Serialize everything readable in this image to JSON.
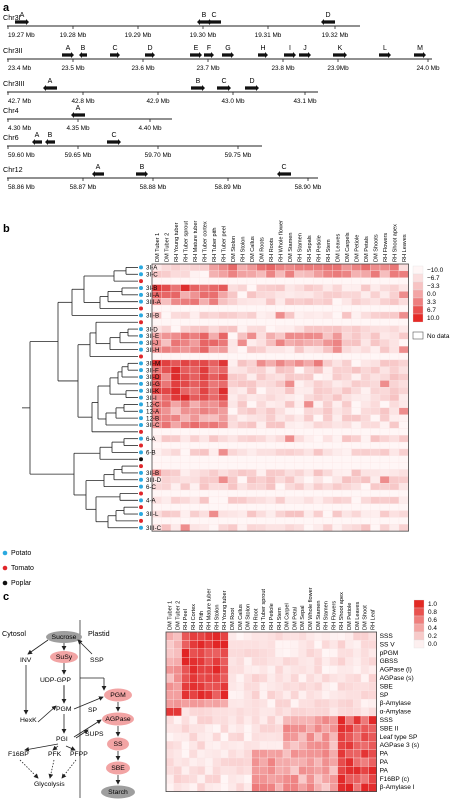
{
  "panel_a": {
    "letter": "a",
    "rows": [
      {
        "chr": "Chr3I",
        "ticks": [
          "19.27 Mb",
          "19.28 Mb",
          "19.29 Mb",
          "19.30 Mb",
          "19.31 Mb",
          "19.32 Mb"
        ],
        "genes": [
          {
            "label": "A",
            "dir": "right"
          },
          {
            "label": "B",
            "dir": "left"
          },
          {
            "label": "C",
            "dir": "left"
          },
          {
            "label": "D",
            "dir": "left"
          }
        ]
      },
      {
        "chr": "Chr3II",
        "ticks": [
          "23.4 Mb",
          "23.5 Mb",
          "23.6 Mb",
          "23.7 Mb",
          "23.8 Mb",
          "23.9Mb",
          "24.0 Mb"
        ],
        "genes": [
          {
            "label": "A",
            "dir": "right"
          },
          {
            "label": "B",
            "dir": "left"
          },
          {
            "label": "C",
            "dir": "right"
          },
          {
            "label": "D",
            "dir": "right"
          },
          {
            "label": "E",
            "dir": "right"
          },
          {
            "label": "F",
            "dir": "right"
          },
          {
            "label": "G",
            "dir": "right"
          },
          {
            "label": "H",
            "dir": "right"
          },
          {
            "label": "I",
            "dir": "right"
          },
          {
            "label": "J",
            "dir": "right"
          },
          {
            "label": "K",
            "dir": "right"
          },
          {
            "label": "L",
            "dir": "right"
          },
          {
            "label": "M",
            "dir": "right"
          }
        ]
      },
      {
        "chr": "Chr3III",
        "ticks": [
          "42.7 Mb",
          "42.8 Mb",
          "42.9 Mb",
          "43.0 Mb",
          "43.1 Mb"
        ],
        "genes": [
          {
            "label": "A",
            "dir": "left"
          },
          {
            "label": "B",
            "dir": "right"
          },
          {
            "label": "C",
            "dir": "right"
          },
          {
            "label": "D",
            "dir": "right"
          }
        ]
      },
      {
        "chr": "Chr4",
        "ticks": [
          "4.30 Mb",
          "4.35 Mb",
          "4.40 Mb"
        ],
        "genes": [
          {
            "label": "A",
            "dir": "left"
          }
        ]
      },
      {
        "chr": "Chr6",
        "ticks": [
          "59.60 Mb",
          "59.65 Mb",
          "59.70 Mb",
          "59.75 Mb"
        ],
        "genes": [
          {
            "label": "A",
            "dir": "left"
          },
          {
            "label": "B",
            "dir": "left"
          },
          {
            "label": "C",
            "dir": "right"
          }
        ]
      },
      {
        "chr": "Chr12",
        "ticks": [
          "58.86 Mb",
          "58.87 Mb",
          "58.88 Mb",
          "58.89 Mb",
          "58.90 Mb"
        ],
        "genes": [
          {
            "label": "A",
            "dir": "left"
          },
          {
            "label": "B",
            "dir": "right"
          },
          {
            "label": "C",
            "dir": "left"
          }
        ]
      }
    ]
  },
  "panel_b": {
    "letter": "b",
    "columns": [
      "DM Tuber 1",
      "DM Tuber 2",
      "RH Young tuber",
      "RH Tuber sprout",
      "RH Mature tuber",
      "RH Tuber cortex",
      "RH Tuber pith",
      "RH Tuber peel",
      "DM Stolon",
      "RH Stolon",
      "DM Callus",
      "DM Roots",
      "RH Roots",
      "RH Whole flower",
      "DM Stamen",
      "RH Stamen",
      "RH Sepals",
      "RH Petiole",
      "RH Stem",
      "DM Leaves",
      "DM Carpels",
      "DM Petiole",
      "DM Petals",
      "DM Shoots",
      "RH Flowers",
      "RH Shoot apex",
      "RH Leaves"
    ],
    "rows": [
      "3I-A",
      "3I-C",
      "",
      "3I-B",
      "3II-A",
      "3III-A",
      "",
      "3II-B",
      "",
      "3I-D",
      "3II-E",
      "3II-J",
      "3II-H",
      "",
      "3II-M",
      "3II-F",
      "3II-D",
      "3II-G",
      "3II-K",
      "3II-I",
      "12-C",
      "12-A",
      "12-B",
      "3II-C",
      "",
      "6-A",
      "",
      "6-B",
      "",
      "",
      "3II-B",
      "3III-D",
      "6-C",
      "",
      "4-A",
      "",
      "3II-L",
      "",
      "3III-C"
    ],
    "dots": [
      "blue",
      "blue",
      "red",
      "blue",
      "blue",
      "blue",
      "red",
      "blue",
      "red",
      "blue",
      "blue",
      "blue",
      "blue",
      "red",
      "blue",
      "blue",
      "blue",
      "blue",
      "blue",
      "blue",
      "blue",
      "blue",
      "blue",
      "blue",
      "red",
      "blue",
      "red",
      "blue",
      "black",
      "red",
      "blue",
      "blue",
      "blue",
      "red",
      "blue",
      "red",
      "blue",
      "red",
      "blue"
    ],
    "legend_scale": [
      "−10.0",
      "−6.7",
      "−3.3",
      "0.0",
      "3.3",
      "6.7",
      "10.0"
    ],
    "no_data": "No data",
    "species_legend": [
      {
        "label": "Potato",
        "color": "#2aa9e0"
      },
      {
        "label": "Tomato",
        "color": "#e0262a"
      },
      {
        "label": "Poplar",
        "color": "#111111"
      }
    ]
  },
  "panel_c": {
    "letter": "c",
    "columns": [
      "DM Tuber 1",
      "DM Tuber 2",
      "RH Peel",
      "RH Cortex",
      "RH Pith",
      "RH Mature tuber",
      "RH Stolon",
      "RH Young tuber",
      "DM Root",
      "DM Callus",
      "DM Stolon",
      "RH Root",
      "RH Tuber sprout",
      "RH Petiole",
      "RH Stem",
      "DM Carpel",
      "DM Petal",
      "DM Sepal",
      "DM Whole flower",
      "DM Stamen",
      "RH Stamen",
      "RH Flowers",
      "RH Shoot apex",
      "DM Petiole",
      "DM Leaves",
      "DM Shoot",
      "RH Leaf"
    ],
    "rows": [
      "SSS",
      "SS V",
      "pPGM",
      "GBSS",
      "AGPase (l)",
      "AGPase (s)",
      "SBE",
      "SP",
      "β-Amylase",
      "α-Amylase",
      "SSS",
      "SBE II",
      "Leaf type SP",
      "AGPase 3 (s)",
      "PA",
      "PA",
      "PA",
      "F16BP (c)",
      "β-Amylase I"
    ],
    "legend_scale": [
      "1.0",
      "0.8",
      "0.6",
      "0.4",
      "0.2",
      "0.0"
    ],
    "pathway": {
      "cytosol": "Cytosol",
      "plastid": "Plastid",
      "sucrose": "Sucrose",
      "susy": "SuSy",
      "inv": "INV",
      "ssp": "SSP",
      "udp_gpp": "UDP-GPP",
      "pgm": "PGM",
      "hexk": "HexK",
      "sups": "SUPS",
      "pgi": "PGI",
      "f16bp": "F16BP",
      "pfk": "PFK",
      "pfpp": "PFPP",
      "glycolysis": "Glycolysis",
      "sp": "SP",
      "pgm_p": "PGM",
      "agpase": "AGPase",
      "ss": "SS",
      "sbe": "SBE",
      "starch": "Starch"
    }
  }
}
